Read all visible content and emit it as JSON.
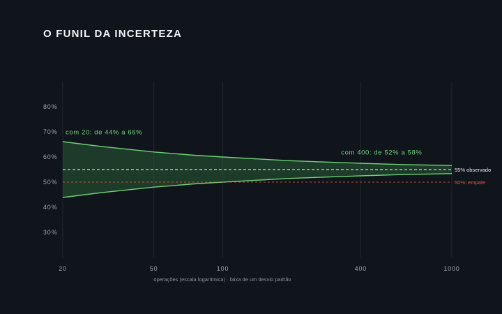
{
  "chart_data": {
    "type": "area",
    "title": "O FUNIL DA INCERTEZA",
    "xlabel": "operações (escala logarítmica) · faixa de um desvio padrão",
    "ylabel": "",
    "x_scale": "log",
    "xlim": [
      20,
      1000
    ],
    "ylim": [
      20,
      90
    ],
    "x_ticks": [
      {
        "value": 20,
        "label": "20"
      },
      {
        "value": 50,
        "label": "50"
      },
      {
        "value": 100,
        "label": "100"
      },
      {
        "value": 400,
        "label": "400"
      },
      {
        "value": 1000,
        "label": "1000"
      }
    ],
    "y_ticks": [
      {
        "value": 30,
        "label": "30%"
      },
      {
        "value": 40,
        "label": "40%"
      },
      {
        "value": 50,
        "label": "50%"
      },
      {
        "value": 60,
        "label": "60%"
      },
      {
        "value": 70,
        "label": "70%"
      },
      {
        "value": 80,
        "label": "80%"
      }
    ],
    "grid": "vertical",
    "band": {
      "center": 55,
      "x": [
        20,
        30,
        50,
        75,
        100,
        150,
        200,
        300,
        400,
        600,
        1000
      ],
      "upper": [
        66.1,
        64.1,
        62.0,
        60.7,
        60.0,
        59.1,
        58.5,
        57.9,
        57.5,
        57.0,
        56.6
      ],
      "lower": [
        43.9,
        45.9,
        48.0,
        49.3,
        50.0,
        50.9,
        51.5,
        52.1,
        52.5,
        53.0,
        53.4
      ],
      "color": "#6fd07a"
    },
    "reference_lines": [
      {
        "value": 55,
        "label": "55% observado",
        "color": "#e8eaed"
      },
      {
        "value": 50,
        "label": "50%: empate",
        "color": "#e05a3a"
      }
    ],
    "annotations": [
      {
        "text": "com 20: de 44% a 66%",
        "x": 20,
        "y": 69
      },
      {
        "text": "com 400: de 52% a 58%",
        "x": 400,
        "y": 61
      }
    ]
  }
}
